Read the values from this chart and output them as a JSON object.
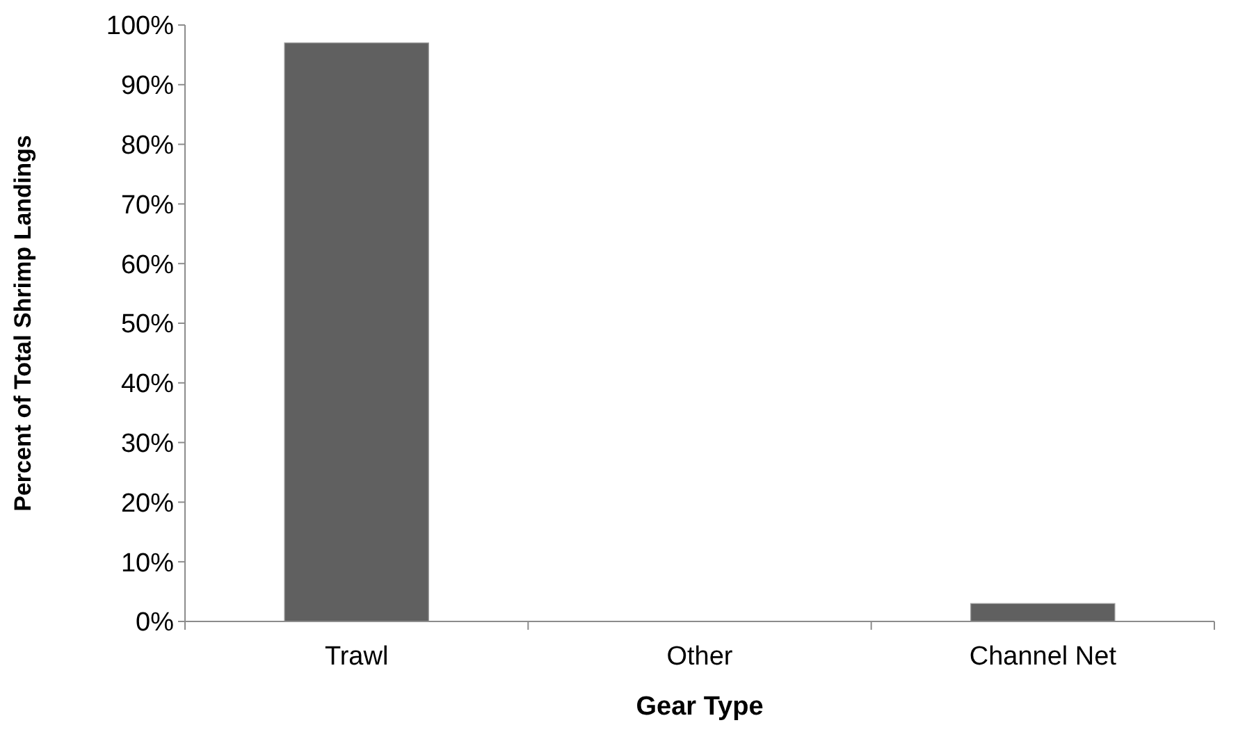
{
  "chart_data": {
    "type": "bar",
    "xlabel": "Gear Type",
    "ylabel": "Percent of Total Shrimp Landings",
    "categories": [
      "Trawl",
      "Other",
      "Channel Net"
    ],
    "values": [
      97,
      0,
      3
    ],
    "color": "#606060",
    "ylim": [
      0,
      100
    ],
    "yticks": [
      {
        "value": 0,
        "label": "0%"
      },
      {
        "value": 10,
        "label": "10%"
      },
      {
        "value": 20,
        "label": "20%"
      },
      {
        "value": 30,
        "label": "30%"
      },
      {
        "value": 40,
        "label": "40%"
      },
      {
        "value": 50,
        "label": "50%"
      },
      {
        "value": 60,
        "label": "60%"
      },
      {
        "value": 70,
        "label": "70%"
      },
      {
        "value": 80,
        "label": "80%"
      },
      {
        "value": 90,
        "label": "90%"
      },
      {
        "value": 100,
        "label": "100%"
      }
    ],
    "grid": false
  }
}
